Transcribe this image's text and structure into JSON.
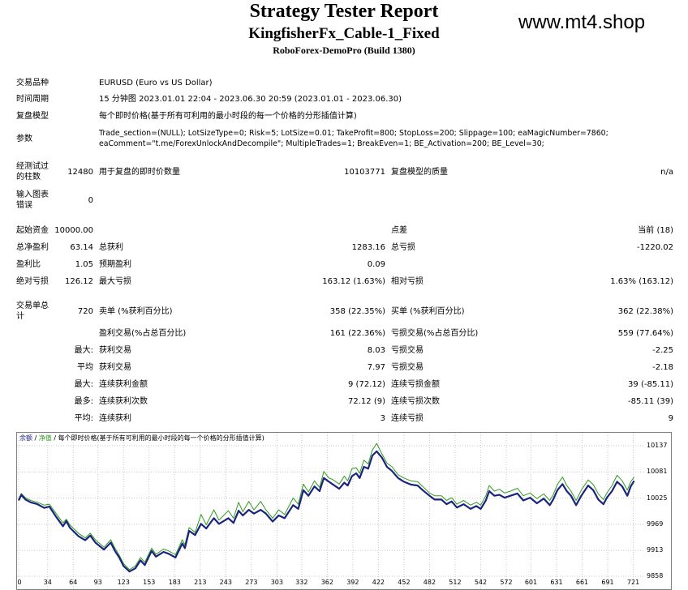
{
  "header": {
    "title": "Strategy Tester Report",
    "ea_name": "KingfisherFx_Cable-1_Fixed",
    "build": "RoboForex-DemoPro (Build 1380)",
    "watermark": "www.mt4.shop"
  },
  "info": {
    "symbol_label": "交易品种",
    "symbol_value": "EURUSD (Euro vs US Dollar)",
    "period_label": "时间周期",
    "period_value": "15 分钟图 2023.01.01 22:04 - 2023.06.30 20:59 (2023.01.01 - 2023.06.30)",
    "model_label": "复盘模型",
    "model_value": "每个即时价格(基于所有可利用的最小时段的每一个价格的分形插值计算)",
    "params_label": "参数",
    "params_line1": "Trade_section=(NULL); LotSizeType=0; Risk=5; LotSize=0.01; TakeProfit=800; StopLoss=200; Slippage=100; eaMagicNumber=7860;",
    "params_line2": "eaComment=\"t.me/ForexUnlockAndDecompile\"; MultipleTrades=1; BreakEven=1; BE_Activation=200; BE_Level=30;"
  },
  "bars": {
    "bars_label_1": "经测试过",
    "bars_label_2": "的柱数",
    "bars_value": "12480",
    "ticks_label": "用于复盘的即时价数量",
    "ticks_value": "10103771",
    "quality_label": "复盘模型的质量",
    "quality_value": "n/a",
    "errors_label_1": "输入图表",
    "errors_label_2": "错误",
    "errors_value": "0"
  },
  "money": {
    "deposit_label": "起始资金",
    "deposit_value": "10000.00",
    "spread_label": "点差",
    "spread_value": "当前 (18)",
    "net_label": "总净盈利",
    "net_value": "63.14",
    "gross_profit_label": "总获利",
    "gross_profit_value": "1283.16",
    "gross_loss_label": "总亏损",
    "gross_loss_value": "-1220.02",
    "pf_label": "盈利比",
    "pf_value": "1.05",
    "expected_label": "预期盈利",
    "expected_value": "0.09",
    "abs_dd_label": "绝对亏损",
    "abs_dd_value": "126.12",
    "max_dd_label": "最大亏损",
    "max_dd_value": "163.12 (1.63%)",
    "rel_dd_label": "相对亏损",
    "rel_dd_value": "1.63% (163.12)"
  },
  "trades": {
    "total_label_1": "交易单总",
    "total_label_2": "计",
    "total_value": "720",
    "short_label": "卖单 (%获利百分比)",
    "short_value": "358 (22.35%)",
    "long_label": "买单 (%获利百分比)",
    "long_value": "362 (22.38%)",
    "profit_trades_label": "盈利交易(%占总百分比)",
    "profit_trades_value": "161 (22.36%)",
    "loss_trades_label": "亏损交易(%占总百分比)",
    "loss_trades_value": "559 (77.64%)",
    "largest_prefix": "最大:",
    "largest_profit_label": "获利交易",
    "largest_profit_value": "8.03",
    "largest_loss_label": "亏损交易",
    "largest_loss_value": "-2.25",
    "average_prefix": "平均",
    "average_profit_label": "获利交易",
    "average_profit_value": "7.97",
    "average_loss_label": "亏损交易",
    "average_loss_value": "-2.18",
    "max_prefix": "最大:",
    "max_consec_wins_label": "连续获利金额",
    "max_consec_wins_value": "9 (72.12)",
    "max_consec_losses_label": "连续亏损金额",
    "max_consec_losses_value": "39 (-85.11)",
    "most_prefix": "最多:",
    "max_consec_profit_label": "连续获利次数",
    "max_consec_profit_value": "72.12 (9)",
    "max_consec_loss_label": "连续亏损次数",
    "max_consec_loss_value": "-85.11 (39)",
    "avg_prefix": "平均:",
    "avg_consec_wins_label": "连续获利",
    "avg_consec_wins_value": "3",
    "avg_consec_losses_label": "连续亏损",
    "avg_consec_losses_value": "9"
  },
  "chart_data": {
    "type": "line",
    "legend_balance": "余额",
    "legend_sep1": " / ",
    "legend_equity": "净值",
    "legend_sep2": " / ",
    "legend_model": "每个即时价格(基于所有可利用的最小时段的每一个价格的分形插值计算)",
    "x_ticks": [
      "0",
      "34",
      "64",
      "93",
      "123",
      "153",
      "183",
      "213",
      "243",
      "273",
      "303",
      "332",
      "362",
      "392",
      "422",
      "452",
      "482",
      "512",
      "542",
      "572",
      "601",
      "631",
      "661",
      "691",
      "721"
    ],
    "y_ticks": [
      "10137",
      "10081",
      "10025",
      "9969",
      "9913",
      "9858"
    ],
    "ylim": [
      9858,
      10137
    ],
    "xlim": [
      0,
      730
    ],
    "colors": {
      "balance": "#1a237e",
      "equity": "#2e9a1e",
      "grid": "#c8c8c8",
      "border": "#808080"
    },
    "series": [
      {
        "name": "余额",
        "points": [
          [
            0,
            10020
          ],
          [
            3,
            10032
          ],
          [
            8,
            10022
          ],
          [
            14,
            10016
          ],
          [
            22,
            10012
          ],
          [
            30,
            10004
          ],
          [
            36,
            10007
          ],
          [
            44,
            9985
          ],
          [
            52,
            9965
          ],
          [
            56,
            9976
          ],
          [
            60,
            9962
          ],
          [
            70,
            9944
          ],
          [
            78,
            9935
          ],
          [
            84,
            9945
          ],
          [
            90,
            9930
          ],
          [
            100,
            9915
          ],
          [
            108,
            9930
          ],
          [
            113,
            9912
          ],
          [
            118,
            9898
          ],
          [
            123,
            9880
          ],
          [
            130,
            9868
          ],
          [
            137,
            9875
          ],
          [
            143,
            9892
          ],
          [
            148,
            9882
          ],
          [
            156,
            9912
          ],
          [
            161,
            9900
          ],
          [
            170,
            9910
          ],
          [
            176,
            9906
          ],
          [
            184,
            9898
          ],
          [
            192,
            9928
          ],
          [
            195,
            9918
          ],
          [
            200,
            9955
          ],
          [
            207,
            9946
          ],
          [
            214,
            9970
          ],
          [
            220,
            9960
          ],
          [
            229,
            9982
          ],
          [
            235,
            9970
          ],
          [
            246,
            9982
          ],
          [
            252,
            9972
          ],
          [
            258,
            9998
          ],
          [
            263,
            9988
          ],
          [
            270,
            10000
          ],
          [
            276,
            9992
          ],
          [
            284,
            10000
          ],
          [
            290,
            9992
          ],
          [
            298,
            9975
          ],
          [
            305,
            9988
          ],
          [
            312,
            9982
          ],
          [
            322,
            10010
          ],
          [
            328,
            10002
          ],
          [
            334,
            10042
          ],
          [
            340,
            10030
          ],
          [
            347,
            10050
          ],
          [
            353,
            10040
          ],
          [
            358,
            10068
          ],
          [
            364,
            10060
          ],
          [
            368,
            10055
          ],
          [
            376,
            10045
          ],
          [
            382,
            10058
          ],
          [
            386,
            10052
          ],
          [
            391,
            10072
          ],
          [
            396,
            10078
          ],
          [
            400,
            10068
          ],
          [
            405,
            10092
          ],
          [
            410,
            10088
          ],
          [
            415,
            10116
          ],
          [
            420,
            10125
          ],
          [
            426,
            10112
          ],
          [
            432,
            10092
          ],
          [
            438,
            10083
          ],
          [
            445,
            10068
          ],
          [
            452,
            10060
          ],
          [
            460,
            10054
          ],
          [
            468,
            10052
          ],
          [
            474,
            10042
          ],
          [
            482,
            10030
          ],
          [
            488,
            10022
          ],
          [
            496,
            10022
          ],
          [
            502,
            10012
          ],
          [
            508,
            10018
          ],
          [
            514,
            10005
          ],
          [
            522,
            10012
          ],
          [
            530,
            10002
          ],
          [
            537,
            10008
          ],
          [
            542,
            10002
          ],
          [
            548,
            10020
          ],
          [
            552,
            10040
          ],
          [
            558,
            10030
          ],
          [
            564,
            10032
          ],
          [
            570,
            10026
          ],
          [
            577,
            10030
          ],
          [
            585,
            10035
          ],
          [
            592,
            10020
          ],
          [
            600,
            10026
          ],
          [
            608,
            10014
          ],
          [
            616,
            10024
          ],
          [
            623,
            10010
          ],
          [
            627,
            10022
          ],
          [
            632,
            10042
          ],
          [
            638,
            10055
          ],
          [
            643,
            10040
          ],
          [
            648,
            10030
          ],
          [
            654,
            10010
          ],
          [
            660,
            10030
          ],
          [
            668,
            10052
          ],
          [
            674,
            10042
          ],
          [
            680,
            10022
          ],
          [
            686,
            10012
          ],
          [
            690,
            10026
          ],
          [
            696,
            10040
          ],
          [
            702,
            10060
          ],
          [
            708,
            10050
          ],
          [
            714,
            10030
          ],
          [
            718,
            10050
          ],
          [
            722,
            10062
          ]
        ]
      },
      {
        "name": "净值",
        "points": [
          [
            0,
            10022
          ],
          [
            3,
            10035
          ],
          [
            8,
            10026
          ],
          [
            14,
            10020
          ],
          [
            22,
            10016
          ],
          [
            30,
            10010
          ],
          [
            36,
            10012
          ],
          [
            44,
            9992
          ],
          [
            52,
            9972
          ],
          [
            56,
            9980
          ],
          [
            60,
            9968
          ],
          [
            70,
            9950
          ],
          [
            78,
            9940
          ],
          [
            84,
            9950
          ],
          [
            90,
            9936
          ],
          [
            100,
            9920
          ],
          [
            108,
            9936
          ],
          [
            113,
            9918
          ],
          [
            118,
            9903
          ],
          [
            123,
            9885
          ],
          [
            130,
            9872
          ],
          [
            137,
            9880
          ],
          [
            143,
            9898
          ],
          [
            148,
            9888
          ],
          [
            156,
            9918
          ],
          [
            161,
            9905
          ],
          [
            170,
            9916
          ],
          [
            176,
            9912
          ],
          [
            184,
            9904
          ],
          [
            192,
            9936
          ],
          [
            195,
            9925
          ],
          [
            200,
            9962
          ],
          [
            207,
            9952
          ],
          [
            214,
            9990
          ],
          [
            220,
            9968
          ],
          [
            229,
            10000
          ],
          [
            235,
            9978
          ],
          [
            246,
            9998
          ],
          [
            252,
            9982
          ],
          [
            258,
            10016
          ],
          [
            263,
            9996
          ],
          [
            270,
            10018
          ],
          [
            276,
            10000
          ],
          [
            284,
            10018
          ],
          [
            290,
            10000
          ],
          [
            298,
            9982
          ],
          [
            305,
            10000
          ],
          [
            312,
            9990
          ],
          [
            322,
            10025
          ],
          [
            328,
            10012
          ],
          [
            334,
            10055
          ],
          [
            340,
            10038
          ],
          [
            347,
            10062
          ],
          [
            353,
            10048
          ],
          [
            358,
            10082
          ],
          [
            364,
            10068
          ],
          [
            368,
            10065
          ],
          [
            376,
            10055
          ],
          [
            382,
            10072
          ],
          [
            386,
            10062
          ],
          [
            391,
            10088
          ],
          [
            396,
            10090
          ],
          [
            400,
            10078
          ],
          [
            405,
            10106
          ],
          [
            410,
            10098
          ],
          [
            415,
            10128
          ],
          [
            420,
            10142
          ],
          [
            426,
            10120
          ],
          [
            432,
            10100
          ],
          [
            438,
            10092
          ],
          [
            445,
            10075
          ],
          [
            452,
            10068
          ],
          [
            460,
            10062
          ],
          [
            468,
            10060
          ],
          [
            474,
            10050
          ],
          [
            482,
            10036
          ],
          [
            488,
            10030
          ],
          [
            496,
            10030
          ],
          [
            502,
            10020
          ],
          [
            508,
            10026
          ],
          [
            514,
            10012
          ],
          [
            522,
            10020
          ],
          [
            530,
            10010
          ],
          [
            537,
            10016
          ],
          [
            542,
            10010
          ],
          [
            548,
            10030
          ],
          [
            552,
            10052
          ],
          [
            558,
            10040
          ],
          [
            564,
            10044
          ],
          [
            570,
            10036
          ],
          [
            577,
            10040
          ],
          [
            585,
            10046
          ],
          [
            592,
            10030
          ],
          [
            600,
            10036
          ],
          [
            608,
            10024
          ],
          [
            616,
            10034
          ],
          [
            623,
            10020
          ],
          [
            627,
            10032
          ],
          [
            632,
            10054
          ],
          [
            638,
            10070
          ],
          [
            643,
            10052
          ],
          [
            648,
            10040
          ],
          [
            654,
            10020
          ],
          [
            660,
            10042
          ],
          [
            668,
            10064
          ],
          [
            674,
            10054
          ],
          [
            680,
            10034
          ],
          [
            686,
            10022
          ],
          [
            690,
            10036
          ],
          [
            696,
            10052
          ],
          [
            702,
            10074
          ],
          [
            708,
            10062
          ],
          [
            714,
            10042
          ],
          [
            718,
            10060
          ],
          [
            722,
            10070
          ]
        ]
      }
    ]
  }
}
